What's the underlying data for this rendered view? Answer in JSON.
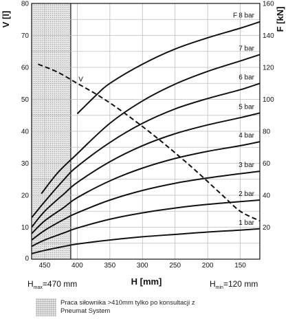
{
  "chart_data": {
    "type": "line",
    "title": "",
    "xlabel": "H [mm]",
    "ylabel_left": "V [l]",
    "ylabel_right": "F [kN]",
    "x_reversed": true,
    "xlim": [
      470,
      120
    ],
    "ylim_left": [
      0,
      80
    ],
    "ylim_right": [
      0,
      160
    ],
    "x_ticks": [
      450,
      400,
      350,
      300,
      250,
      200,
      150
    ],
    "y_ticks_left": [
      10,
      20,
      30,
      40,
      50,
      60,
      70,
      80
    ],
    "y_ticks_right": [
      20,
      40,
      60,
      80,
      100,
      120,
      140,
      160
    ],
    "y0_label": "0",
    "grid": true,
    "force_axis_label": "F",
    "force_series": [
      {
        "name": "1 bar",
        "x": [
          470,
          450,
          420,
          400,
          350,
          300,
          250,
          200,
          150,
          120
        ],
        "y": [
          3.5,
          5.5,
          8.0,
          9.5,
          12.0,
          14.0,
          15.5,
          17.0,
          18.2,
          19.0
        ]
      },
      {
        "name": "2 bar",
        "x": [
          470,
          450,
          420,
          400,
          350,
          300,
          250,
          200,
          150,
          120
        ],
        "y": [
          8.0,
          12.0,
          16.5,
          19.5,
          25.0,
          29.0,
          32.0,
          34.3,
          36.0,
          37.0
        ]
      },
      {
        "name": "3 bar",
        "x": [
          470,
          450,
          420,
          400,
          350,
          300,
          250,
          200,
          150,
          120
        ],
        "y": [
          12.0,
          18.0,
          25.0,
          29.0,
          37.0,
          43.0,
          47.5,
          50.8,
          53.5,
          55.0
        ]
      },
      {
        "name": "4 bar",
        "x": [
          470,
          450,
          420,
          400,
          350,
          300,
          250,
          200,
          150,
          120
        ],
        "y": [
          16.0,
          24.0,
          32.5,
          38.5,
          49.0,
          57.0,
          63.0,
          67.5,
          71.0,
          73.5
        ]
      },
      {
        "name": "5 bar",
        "x": [
          470,
          450,
          420,
          400,
          350,
          300,
          250,
          200,
          150,
          120
        ],
        "y": [
          20.0,
          30.0,
          41.0,
          48.0,
          61.0,
          71.0,
          78.5,
          84.0,
          88.5,
          91.5
        ]
      },
      {
        "name": "6 bar",
        "x": [
          470,
          450,
          420,
          400,
          350,
          300,
          250,
          200,
          150,
          120
        ],
        "y": [
          26.0,
          36.0,
          50.0,
          58.0,
          73.0,
          85.0,
          94.0,
          100.5,
          106.0,
          110.0
        ]
      },
      {
        "name": "7 bar",
        "x": [
          455,
          430,
          400,
          350,
          300,
          250,
          200,
          150,
          120
        ],
        "y": [
          41.0,
          54.0,
          66.0,
          85.0,
          99.0,
          109.5,
          117.5,
          124.0,
          128.0
        ]
      },
      {
        "name": "8 bar",
        "x": [
          400,
          370,
          350,
          300,
          250,
          200,
          150,
          120
        ],
        "y": [
          91.0,
          103.0,
          110.0,
          122.0,
          131.5,
          138.5,
          144.5,
          148.5
        ]
      }
    ],
    "volume_series": {
      "name": "V",
      "x": [
        460,
        430,
        400,
        370,
        340,
        300,
        260,
        220,
        180,
        150,
        120
      ],
      "y": [
        61.0,
        58.5,
        55.0,
        51.5,
        47.5,
        41.5,
        35.0,
        28.0,
        20.5,
        15.0,
        12.0
      ]
    },
    "shaded_region": {
      "x_from": 470,
      "x_to": 410,
      "xlim_start": 470
    },
    "annotations": {
      "hmax_prefix": "H",
      "hmax_sub": "max",
      "hmax_value": "=470 mm",
      "hmin_prefix": "H",
      "hmin_sub": "min",
      "hmin_value": "=120 mm"
    }
  },
  "legend": {
    "text": "Praca siłownika >410mm tylko po konsultacji z Pneumat System"
  }
}
